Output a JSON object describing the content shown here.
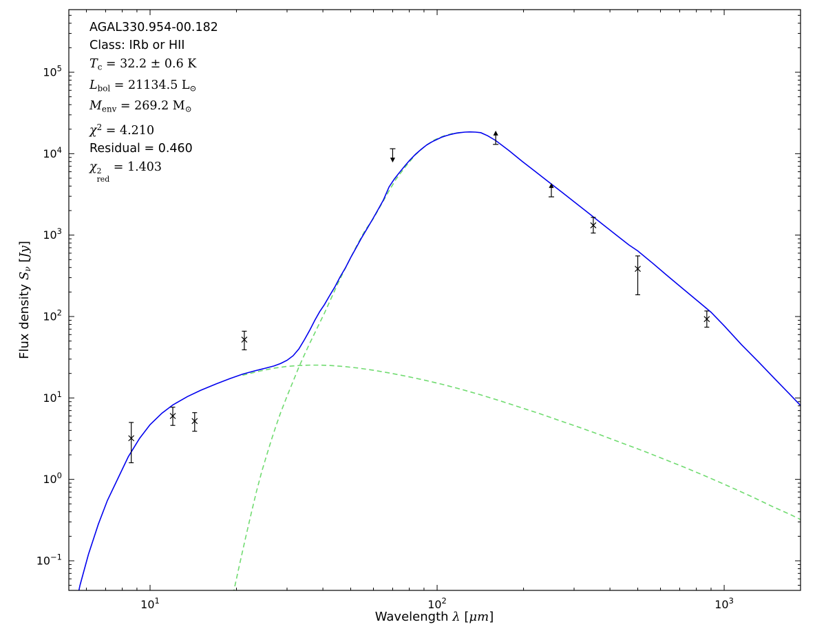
{
  "figure": {
    "background": "#ffffff",
    "annotation": {
      "lines": [
        {
          "name": "source-name",
          "seg": [
            {
              "t": "AGAL330.954-00.182",
              "k": "s"
            }
          ]
        },
        {
          "name": "source-class",
          "seg": [
            {
              "t": "Class: IRb or HII",
              "k": "s"
            }
          ]
        },
        {
          "name": "dust-temperature",
          "seg": [
            {
              "t": "T",
              "k": "i"
            },
            {
              "t": "c",
              "k": "sub"
            },
            {
              "t": " = 32.2 ± 0.6 K",
              "k": "r"
            }
          ]
        },
        {
          "name": "bolometric-luminosity",
          "seg": [
            {
              "t": "L",
              "k": "i"
            },
            {
              "t": "bol",
              "k": "sub"
            },
            {
              "t": " = 21134.5 L",
              "k": "r"
            },
            {
              "t": "⊙",
              "k": "sub"
            }
          ]
        },
        {
          "name": "envelope-mass",
          "seg": [
            {
              "t": "M",
              "k": "i"
            },
            {
              "t": "env",
              "k": "sub"
            },
            {
              "t": " = 269.2 M",
              "k": "r"
            },
            {
              "t": "⊙",
              "k": "sub"
            }
          ]
        },
        {
          "name": "chi-squared",
          "seg": [
            {
              "t": "χ",
              "k": "i"
            },
            {
              "t": "2",
              "k": "sup"
            },
            {
              "t": " = 4.210",
              "k": "r"
            }
          ]
        },
        {
          "name": "residual",
          "seg": [
            {
              "t": "Residual = 0.460",
              "k": "s"
            }
          ]
        },
        {
          "name": "reduced-chi-squared",
          "seg": [
            {
              "t": "χ",
              "k": "i"
            },
            {
              "k": "ss",
              "sup": "2",
              "sub": "red"
            },
            {
              "t": " = 1.403",
              "k": "r"
            }
          ]
        }
      ]
    }
  },
  "chart_data": {
    "type": "line",
    "title": "",
    "xlabel_segments": [
      {
        "t": "Wavelength ",
        "k": "s"
      },
      {
        "t": "λ",
        "k": "i"
      },
      {
        "t": " [",
        "k": "s"
      },
      {
        "t": "μm",
        "k": "i"
      },
      {
        "t": "]",
        "k": "s"
      }
    ],
    "ylabel_segments": [
      {
        "t": "Flux density ",
        "k": "s"
      },
      {
        "t": "S",
        "k": "i"
      },
      {
        "t": "ν",
        "k": "isub"
      },
      {
        "t": " [",
        "k": "s"
      },
      {
        "t": "Jy",
        "k": "i"
      },
      {
        "t": "]",
        "k": "s"
      }
    ],
    "axes": {
      "xscale": "log",
      "yscale": "log",
      "xmin": 5.212,
      "xmax": 1845,
      "ymin": 0.0433,
      "ymax": 587500,
      "x_major_ticks": [
        {
          "v": 10,
          "base": "10",
          "exp": "1"
        },
        {
          "v": 100,
          "base": "10",
          "exp": "2"
        },
        {
          "v": 1000,
          "base": "10",
          "exp": "3"
        }
      ],
      "y_major_ticks": [
        {
          "v": 0.1,
          "base": "10",
          "exp": "−1"
        },
        {
          "v": 1,
          "base": "10",
          "exp": "0"
        },
        {
          "v": 10,
          "base": "10",
          "exp": "1"
        },
        {
          "v": 100,
          "base": "10",
          "exp": "2"
        },
        {
          "v": 1000,
          "base": "10",
          "exp": "3"
        },
        {
          "v": 10000,
          "base": "10",
          "exp": "4"
        },
        {
          "v": 100000,
          "base": "10",
          "exp": "5"
        }
      ],
      "grid": false,
      "legend": "none"
    },
    "colors": {
      "model_total": "#0000ee",
      "components": "#70db70",
      "data_points": "#000000",
      "frame": "#000000"
    },
    "series": [
      {
        "name": "warm-component",
        "style": "dashed",
        "colorKey": "components",
        "points": [
          [
            21,
            19.0
          ],
          [
            24,
            21.3
          ],
          [
            27,
            23.2
          ],
          [
            30,
            24.4
          ],
          [
            33,
            25.0
          ],
          [
            36,
            25.3
          ],
          [
            39,
            25.3
          ],
          [
            42,
            25.1
          ],
          [
            47,
            24.4
          ],
          [
            53,
            23.3
          ],
          [
            60,
            21.9
          ],
          [
            68,
            20.3
          ],
          [
            78,
            18.5
          ],
          [
            90,
            16.6
          ],
          [
            105,
            14.6
          ],
          [
            122,
            12.7
          ],
          [
            142,
            10.9
          ],
          [
            166,
            9.2
          ],
          [
            194,
            7.7
          ],
          [
            228,
            6.4
          ],
          [
            268,
            5.25
          ],
          [
            316,
            4.3
          ],
          [
            372,
            3.5
          ],
          [
            440,
            2.8
          ],
          [
            520,
            2.25
          ],
          [
            615,
            1.78
          ],
          [
            730,
            1.4
          ],
          [
            870,
            1.08
          ],
          [
            1040,
            0.82
          ],
          [
            1240,
            0.62
          ],
          [
            1480,
            0.46
          ],
          [
            1700,
            0.37
          ],
          [
            1850,
            0.32
          ]
        ]
      },
      {
        "name": "cold-envelope-component",
        "style": "dashed",
        "colorKey": "components",
        "points": [
          [
            18.8,
            0.02
          ],
          [
            19.5,
            0.04
          ],
          [
            20.5,
            0.09
          ],
          [
            21.5,
            0.19
          ],
          [
            22.5,
            0.38
          ],
          [
            23.5,
            0.72
          ],
          [
            24.5,
            1.25
          ],
          [
            25.5,
            2.0
          ],
          [
            26.5,
            3.1
          ],
          [
            27.5,
            4.6
          ],
          [
            28.5,
            6.6
          ],
          [
            30,
            10.5
          ],
          [
            31.5,
            16
          ],
          [
            33,
            24
          ],
          [
            34.5,
            34
          ],
          [
            36,
            47
          ],
          [
            37.5,
            63
          ],
          [
            39,
            84
          ],
          [
            40.5,
            110
          ],
          [
            42.5,
            160
          ],
          [
            45,
            250
          ],
          [
            47.5,
            370
          ],
          [
            50,
            530
          ],
          [
            53,
            790
          ],
          [
            56,
            1130
          ],
          [
            60,
            1600
          ],
          [
            64,
            2400
          ],
          [
            68,
            3500
          ],
          [
            72,
            4900
          ],
          [
            78,
            7100
          ],
          [
            84,
            9700
          ],
          [
            91,
            12500
          ],
          [
            98,
            14800
          ],
          [
            106,
            16600
          ],
          [
            114,
            17800
          ],
          [
            123,
            18300
          ]
        ]
      },
      {
        "name": "model-total",
        "style": "solid",
        "colorKey": "model_total",
        "points": [
          [
            5.3,
            0.015
          ],
          [
            5.7,
            0.05
          ],
          [
            6.1,
            0.12
          ],
          [
            6.6,
            0.28
          ],
          [
            7.1,
            0.55
          ],
          [
            7.7,
            1.0
          ],
          [
            8.4,
            1.9
          ],
          [
            9.2,
            3.2
          ],
          [
            10,
            4.7
          ],
          [
            11,
            6.5
          ],
          [
            12,
            8.2
          ],
          [
            13.5,
            10.4
          ],
          [
            15,
            12.4
          ],
          [
            17,
            14.9
          ],
          [
            19,
            17.3
          ],
          [
            21,
            19.6
          ],
          [
            23,
            21.4
          ],
          [
            25,
            23.0
          ],
          [
            27,
            24.7
          ],
          [
            28.5,
            26.5
          ],
          [
            30,
            29
          ],
          [
            31.5,
            33
          ],
          [
            33,
            40
          ],
          [
            34.5,
            52
          ],
          [
            36,
            68
          ],
          [
            37.5,
            90
          ],
          [
            39,
            115
          ],
          [
            40.5,
            140
          ],
          [
            42,
            175
          ],
          [
            44,
            230
          ],
          [
            46,
            310
          ],
          [
            48,
            400
          ],
          [
            50,
            530
          ],
          [
            52,
            680
          ],
          [
            54.5,
            920
          ],
          [
            57,
            1200
          ],
          [
            59.5,
            1550
          ],
          [
            62,
            2000
          ],
          [
            65,
            2700
          ],
          [
            68,
            3900
          ],
          [
            71,
            4900
          ],
          [
            74,
            5900
          ],
          [
            77,
            7000
          ],
          [
            80,
            8200
          ],
          [
            84,
            9800
          ],
          [
            88,
            11300
          ],
          [
            92,
            12800
          ],
          [
            96,
            14000
          ],
          [
            100,
            15000
          ],
          [
            104,
            16000
          ],
          [
            108,
            16700
          ],
          [
            112,
            17300
          ],
          [
            116,
            17800
          ],
          [
            120,
            18100
          ],
          [
            125,
            18400
          ],
          [
            130,
            18500
          ],
          [
            136,
            18400
          ],
          [
            142,
            18100
          ],
          [
            150,
            16600
          ],
          [
            160,
            14500
          ],
          [
            178,
            10900
          ],
          [
            198,
            8030
          ],
          [
            220,
            6020
          ],
          [
            245,
            4480
          ],
          [
            272,
            3370
          ],
          [
            303,
            2500
          ],
          [
            337,
            1860
          ],
          [
            375,
            1380
          ],
          [
            418,
            1020
          ],
          [
            465,
            760
          ],
          [
            500,
            640
          ],
          [
            560,
            460
          ],
          [
            630,
            323
          ],
          [
            710,
            227
          ],
          [
            800,
            160
          ],
          [
            900,
            113
          ],
          [
            1000,
            77
          ],
          [
            1150,
            45
          ],
          [
            1320,
            27.5
          ],
          [
            1500,
            17.2
          ],
          [
            1680,
            11.4
          ],
          [
            1850,
            8.0
          ]
        ]
      }
    ],
    "points": [
      {
        "x": 8.6,
        "y": 3.2,
        "ylo": 1.6,
        "yhi": 5.0,
        "marker": "x"
      },
      {
        "x": 12,
        "y": 6.0,
        "ylo": 4.6,
        "yhi": 7.7,
        "marker": "x"
      },
      {
        "x": 14.3,
        "y": 5.2,
        "ylo": 3.9,
        "yhi": 6.6,
        "marker": "x"
      },
      {
        "x": 21.3,
        "y": 52,
        "ylo": 39,
        "yhi": 66,
        "marker": "x"
      },
      {
        "x": 70,
        "y": 11500,
        "marker": "upper-limit"
      },
      {
        "x": 160,
        "y": 13000,
        "marker": "lower-limit"
      },
      {
        "x": 250,
        "y": 2950,
        "marker": "lower-limit"
      },
      {
        "x": 350,
        "y": 1320,
        "ylo": 1060,
        "yhi": 1650,
        "marker": "x"
      },
      {
        "x": 500,
        "y": 385,
        "ylo": 185,
        "yhi": 555,
        "marker": "x"
      },
      {
        "x": 870,
        "y": 93,
        "ylo": 74,
        "yhi": 117,
        "marker": "x"
      }
    ]
  }
}
